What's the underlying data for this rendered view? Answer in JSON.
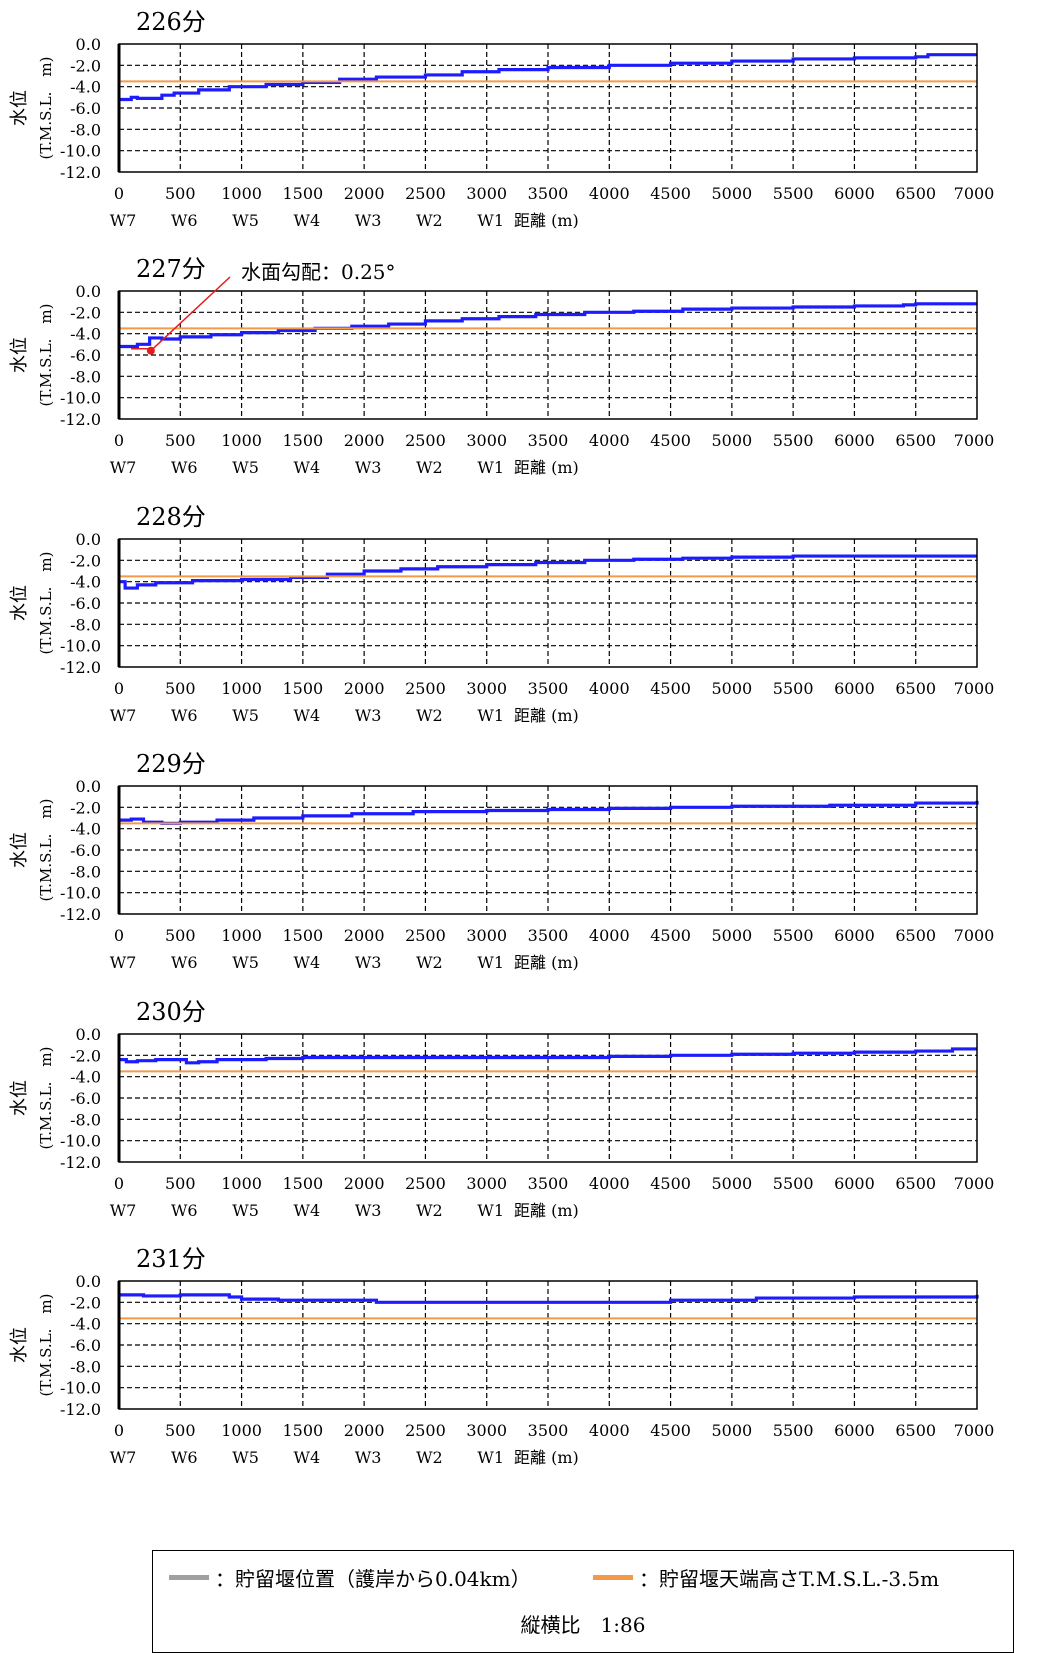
{
  "chart_data": [
    {
      "type": "line",
      "title": "226分",
      "ylabel": "水位\n(T.M.S.L.　m)",
      "xlabel": "距離 (m)",
      "xlim": [
        0,
        7000
      ],
      "ylim": [
        -12.0,
        0.0
      ],
      "grid": true,
      "x_ticks": [
        "0",
        "500",
        "1000",
        "1500",
        "2000",
        "2500",
        "3000",
        "3500",
        "4000",
        "4500",
        "5000",
        "5500",
        "6000",
        "6500",
        "7000"
      ],
      "y_ticks": [
        "0.0",
        "-2.0",
        "-4.0",
        "-6.0",
        "-8.0",
        "-10.0",
        "-12.0"
      ],
      "station_labels": [
        "W7",
        "W6",
        "W5",
        "W4",
        "W3",
        "W2",
        "W1"
      ],
      "series": [
        {
          "color": "#1c1cff",
          "x": [
            0,
            100,
            150,
            250,
            350,
            450,
            650,
            900,
            1200,
            1500,
            1800,
            2100,
            2500,
            2800,
            3100,
            3500,
            4000,
            4500,
            5000,
            5500,
            6000,
            6500,
            6600,
            7000
          ],
          "y": [
            -5.2,
            -5.0,
            -5.1,
            -5.1,
            -4.8,
            -4.6,
            -4.3,
            -4.0,
            -3.8,
            -3.6,
            -3.3,
            -3.1,
            -2.9,
            -2.6,
            -2.4,
            -2.2,
            -2.0,
            -1.8,
            -1.6,
            -1.4,
            -1.3,
            -1.2,
            -1.0,
            -1.0
          ]
        },
        {
          "color": "#f39a4a",
          "x": [
            0,
            7000
          ],
          "y": [
            -3.5,
            -3.5
          ]
        }
      ]
    },
    {
      "type": "line",
      "title": "227分",
      "ylabel": "水位\n(T.M.S.L.　m)",
      "xlabel": "距離 (m)",
      "xlim": [
        0,
        7000
      ],
      "ylim": [
        -12.0,
        0.0
      ],
      "grid": true,
      "x_ticks": [
        "0",
        "500",
        "1000",
        "1500",
        "2000",
        "2500",
        "3000",
        "3500",
        "4000",
        "4500",
        "5000",
        "5500",
        "6000",
        "6500",
        "7000"
      ],
      "y_ticks": [
        "0.0",
        "-2.0",
        "-4.0",
        "-6.0",
        "-8.0",
        "-10.0",
        "-12.0"
      ],
      "station_labels": [
        "W7",
        "W6",
        "W5",
        "W4",
        "W3",
        "W2",
        "W1"
      ],
      "annotation": {
        "text": "水面勾配：0.25°",
        "color": "#e61b1b",
        "target_x": 260,
        "target_y": -5.6
      },
      "series": [
        {
          "color": "#1c1cff",
          "x": [
            0,
            150,
            250,
            350,
            500,
            750,
            1000,
            1300,
            1600,
            1900,
            2200,
            2500,
            2800,
            3100,
            3400,
            3800,
            4200,
            4600,
            5000,
            5500,
            6000,
            6400,
            6500,
            7000
          ],
          "y": [
            -5.2,
            -5.0,
            -4.4,
            -4.5,
            -4.3,
            -4.1,
            -3.9,
            -3.7,
            -3.5,
            -3.3,
            -3.1,
            -2.8,
            -2.6,
            -2.4,
            -2.2,
            -2.0,
            -1.9,
            -1.7,
            -1.6,
            -1.5,
            -1.4,
            -1.3,
            -1.2,
            -1.2
          ]
        },
        {
          "color": "#f39a4a",
          "x": [
            0,
            7000
          ],
          "y": [
            -3.5,
            -3.5
          ]
        }
      ]
    },
    {
      "type": "line",
      "title": "228分",
      "ylabel": "水位\n(T.M.S.L.　m)",
      "xlabel": "距離 (m)",
      "xlim": [
        0,
        7000
      ],
      "ylim": [
        -12.0,
        0.0
      ],
      "grid": true,
      "x_ticks": [
        "0",
        "500",
        "1000",
        "1500",
        "2000",
        "2500",
        "3000",
        "3500",
        "4000",
        "4500",
        "5000",
        "5500",
        "6000",
        "6500",
        "7000"
      ],
      "y_ticks": [
        "0.0",
        "-2.0",
        "-4.0",
        "-6.0",
        "-8.0",
        "-10.0",
        "-12.0"
      ],
      "station_labels": [
        "W7",
        "W6",
        "W5",
        "W4",
        "W3",
        "W2",
        "W1"
      ],
      "series": [
        {
          "color": "#1c1cff",
          "x": [
            0,
            50,
            150,
            300,
            600,
            1000,
            1400,
            1700,
            2000,
            2300,
            2600,
            3000,
            3400,
            3800,
            4200,
            4600,
            5000,
            5500,
            6000,
            6500,
            7000
          ],
          "y": [
            -4.0,
            -4.6,
            -4.3,
            -4.1,
            -3.9,
            -3.8,
            -3.6,
            -3.3,
            -3.0,
            -2.8,
            -2.6,
            -2.4,
            -2.2,
            -2.0,
            -1.9,
            -1.8,
            -1.7,
            -1.6,
            -1.6,
            -1.6,
            -1.6
          ]
        },
        {
          "color": "#f39a4a",
          "x": [
            0,
            7000
          ],
          "y": [
            -3.5,
            -3.5
          ]
        }
      ]
    },
    {
      "type": "line",
      "title": "229分",
      "ylabel": "水位\n(T.M.S.L.　m)",
      "xlabel": "距離 (m)",
      "xlim": [
        0,
        7000
      ],
      "ylim": [
        -12.0,
        0.0
      ],
      "grid": true,
      "x_ticks": [
        "0",
        "500",
        "1000",
        "1500",
        "2000",
        "2500",
        "3000",
        "3500",
        "4000",
        "4500",
        "5000",
        "5500",
        "6000",
        "6500",
        "7000"
      ],
      "y_ticks": [
        "0.0",
        "-2.0",
        "-4.0",
        "-6.0",
        "-8.0",
        "-10.0",
        "-12.0"
      ],
      "station_labels": [
        "W7",
        "W6",
        "W5",
        "W4",
        "W3",
        "W2",
        "W1"
      ],
      "series": [
        {
          "color": "#1c1cff",
          "x": [
            0,
            100,
            200,
            350,
            500,
            800,
            1100,
            1500,
            1900,
            2400,
            3000,
            3500,
            4000,
            4500,
            5000,
            5800,
            6500,
            6900,
            7000
          ],
          "y": [
            -3.2,
            -3.1,
            -3.4,
            -3.5,
            -3.4,
            -3.2,
            -3.0,
            -2.8,
            -2.6,
            -2.4,
            -2.3,
            -2.2,
            -2.1,
            -2.0,
            -1.9,
            -1.8,
            -1.6,
            -1.6,
            -1.4
          ]
        },
        {
          "color": "#f39a4a",
          "x": [
            0,
            7000
          ],
          "y": [
            -3.5,
            -3.5
          ]
        }
      ]
    },
    {
      "type": "line",
      "title": "230分",
      "ylabel": "水位\n(T.M.S.L.　m)",
      "xlabel": "距離 (m)",
      "xlim": [
        0,
        7000
      ],
      "ylim": [
        -12.0,
        0.0
      ],
      "grid": true,
      "x_ticks": [
        "0",
        "500",
        "1000",
        "1500",
        "2000",
        "2500",
        "3000",
        "3500",
        "4000",
        "4500",
        "5000",
        "5500",
        "6000",
        "6500",
        "7000"
      ],
      "y_ticks": [
        "0.0",
        "-2.0",
        "-4.0",
        "-6.0",
        "-8.0",
        "-10.0",
        "-12.0"
      ],
      "station_labels": [
        "W7",
        "W6",
        "W5",
        "W4",
        "W3",
        "W2",
        "W1"
      ],
      "series": [
        {
          "color": "#1c1cff",
          "x": [
            0,
            60,
            150,
            300,
            500,
            550,
            650,
            800,
            1200,
            1500,
            2000,
            2500,
            3000,
            3500,
            4000,
            4500,
            5000,
            5500,
            6000,
            6500,
            6800,
            7000
          ],
          "y": [
            -2.4,
            -2.6,
            -2.5,
            -2.4,
            -2.4,
            -2.7,
            -2.6,
            -2.4,
            -2.3,
            -2.2,
            -2.2,
            -2.2,
            -2.2,
            -2.2,
            -2.1,
            -2.0,
            -1.9,
            -1.8,
            -1.7,
            -1.6,
            -1.4,
            -1.4
          ]
        },
        {
          "color": "#f39a4a",
          "x": [
            0,
            7000
          ],
          "y": [
            -3.5,
            -3.5
          ]
        }
      ]
    },
    {
      "type": "line",
      "title": "231分",
      "ylabel": "水位\n(T.M.S.L.　m)",
      "xlabel": "距離 (m)",
      "xlim": [
        0,
        7000
      ],
      "ylim": [
        -12.0,
        0.0
      ],
      "grid": true,
      "x_ticks": [
        "0",
        "500",
        "1000",
        "1500",
        "2000",
        "2500",
        "3000",
        "3500",
        "4000",
        "4500",
        "5000",
        "5500",
        "6000",
        "6500",
        "7000"
      ],
      "y_ticks": [
        "0.0",
        "-2.0",
        "-4.0",
        "-6.0",
        "-8.0",
        "-10.0",
        "-12.0"
      ],
      "station_labels": [
        "W7",
        "W6",
        "W5",
        "W4",
        "W3",
        "W2",
        "W1"
      ],
      "series": [
        {
          "color": "#1c1cff",
          "x": [
            0,
            150,
            200,
            500,
            750,
            900,
            1000,
            1300,
            2000,
            2100,
            2800,
            3500,
            4200,
            4450,
            4500,
            5000,
            5200,
            6000,
            6500,
            7000
          ],
          "y": [
            -1.3,
            -1.3,
            -1.4,
            -1.3,
            -1.3,
            -1.5,
            -1.7,
            -1.8,
            -1.8,
            -2.0,
            -2.0,
            -2.0,
            -2.0,
            -2.0,
            -1.8,
            -1.8,
            -1.6,
            -1.5,
            -1.5,
            -1.3
          ]
        },
        {
          "color": "#f39a4a",
          "x": [
            0,
            7000
          ],
          "y": [
            -3.5,
            -3.5
          ]
        }
      ]
    }
  ],
  "legend": {
    "items": [
      {
        "label": "：貯留堰位置（護岸から0.04km）",
        "color": "#a0a0a0"
      },
      {
        "label": "：貯留堰天端高さT.M.S.L.-3.5m",
        "color": "#f39a4a"
      }
    ],
    "aspect_ratio": "縦横比　1:86"
  }
}
